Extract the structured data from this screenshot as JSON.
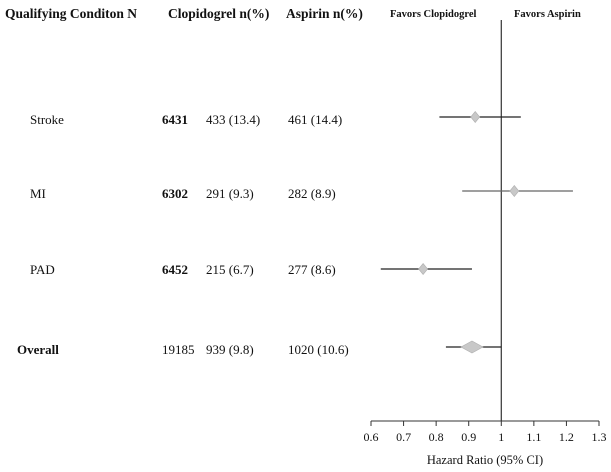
{
  "headers": {
    "condition": "Qualifying Conditon N",
    "clopidogrel": "Clopidogrel n(%)",
    "aspirin": "Aspirin n(%)"
  },
  "favors": {
    "left": "Favors Clopidogrel",
    "right": "Favors Aspirin"
  },
  "rows": [
    {
      "label": "Stroke",
      "n": "6431",
      "clopidogrel": "433 (13.4)",
      "aspirin": "461 (14.4)"
    },
    {
      "label": "MI",
      "n": "6302",
      "clopidogrel": "291 (9.3)",
      "aspirin": "282 (8.9)"
    },
    {
      "label": "PAD",
      "n": "6452",
      "clopidogrel": "215 (6.7)",
      "aspirin": "277 (8.6)"
    },
    {
      "label": "Overall",
      "n": "19185",
      "clopidogrel": "939 (9.8)",
      "aspirin": "1020 (10.6)"
    }
  ],
  "chart_data": {
    "type": "forest",
    "xlabel": "Hazard Ratio (95% CI)",
    "xlim": [
      0.6,
      1.3
    ],
    "xticks": [
      "0.6",
      "0.7",
      "0.8",
      "0.9",
      "1",
      "1.1",
      "1.2",
      "1.3"
    ],
    "reference_line": 1.0,
    "categories": [
      "Stroke",
      "MI",
      "PAD",
      "Overall"
    ],
    "estimates": [
      {
        "label": "Stroke",
        "hr": 0.92,
        "lower": 0.81,
        "upper": 1.06
      },
      {
        "label": "MI",
        "hr": 1.04,
        "lower": 0.88,
        "upper": 1.22
      },
      {
        "label": "PAD",
        "hr": 0.76,
        "lower": 0.63,
        "upper": 0.91
      },
      {
        "label": "Overall",
        "hr": 0.91,
        "lower": 0.83,
        "upper": 1.0
      }
    ],
    "marker_color": "#c8c8c8",
    "line_color": "#222222"
  }
}
